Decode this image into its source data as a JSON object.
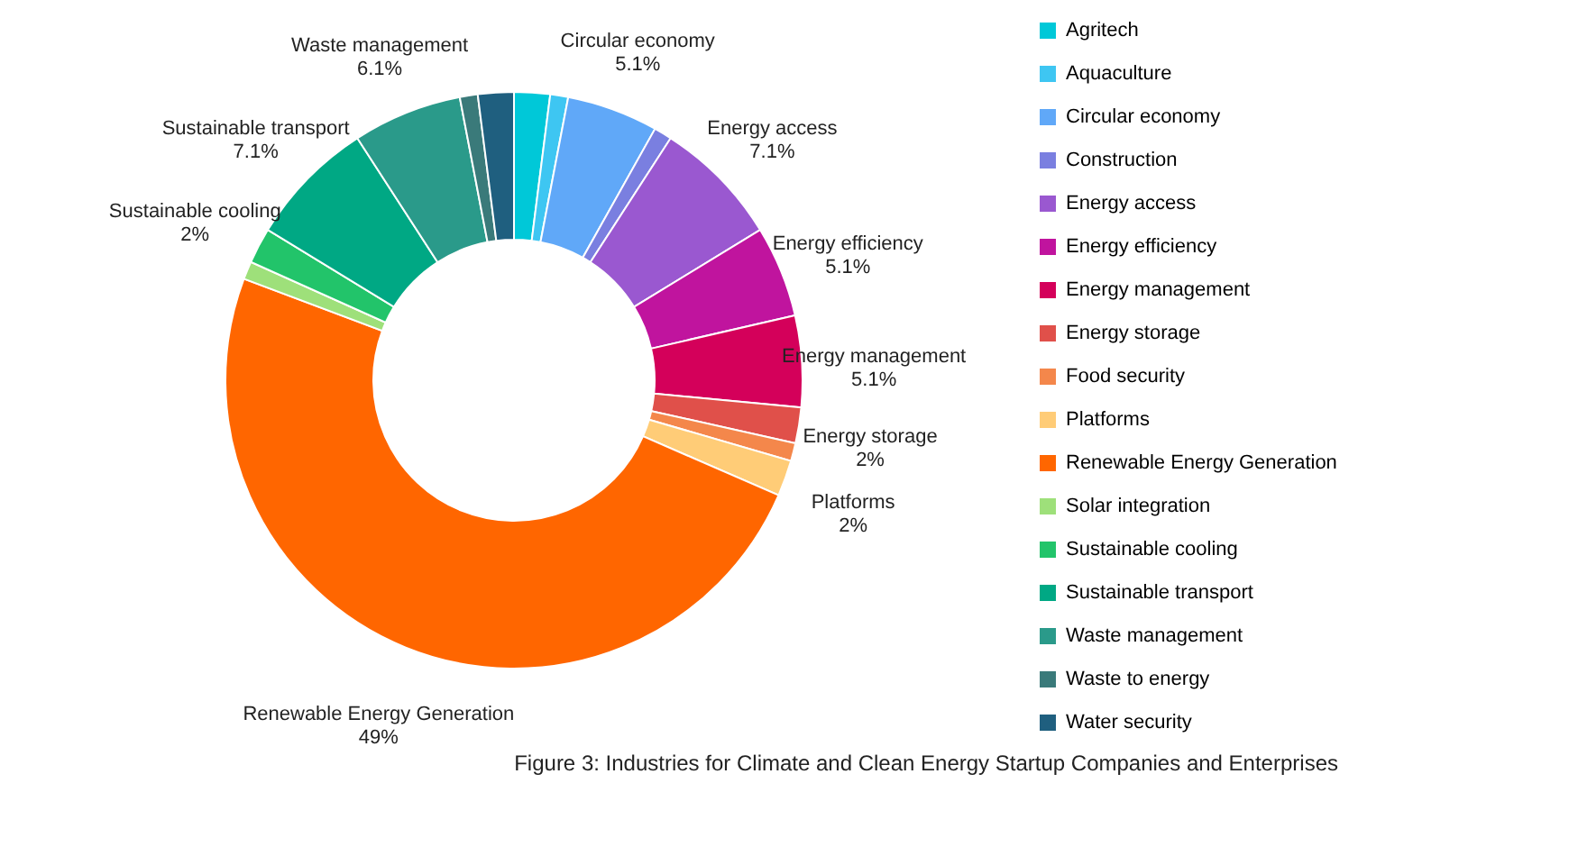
{
  "chart_data": {
    "type": "donut",
    "title": "Figure 3: Industries for Climate and Clean Energy Startup Companies and Enterprises",
    "categories": [
      "Agritech",
      "Aquaculture",
      "Circular economy",
      "Construction",
      "Energy access",
      "Energy efficiency",
      "Energy management",
      "Energy storage",
      "Food security",
      "Platforms",
      "Renewable Energy Generation",
      "Solar integration",
      "Sustainable cooling",
      "Sustainable transport",
      "Waste management",
      "Waste to energy",
      "Water security"
    ],
    "values": [
      2,
      1,
      5.1,
      1,
      7.1,
      5.1,
      5.1,
      2,
      1,
      2,
      49,
      1,
      2,
      7.1,
      6.1,
      1,
      2
    ],
    "value_labels": [
      null,
      null,
      "5.1%",
      null,
      "7.1%",
      "5.1%",
      "5.1%",
      "2%",
      null,
      "2%",
      "49%",
      null,
      "2%",
      "7.1%",
      "6.1%",
      null,
      null
    ],
    "colors": [
      "#00c8d8",
      "#3ec6f2",
      "#60a8f8",
      "#7a7fe0",
      "#9a58d0",
      "#c0149e",
      "#d4005a",
      "#e0504a",
      "#f4874b",
      "#ffcc77",
      "#ff6600",
      "#9ee07a",
      "#22c46a",
      "#00a884",
      "#2a9a8a",
      "#3a7a7a",
      "#1f5f7f"
    ],
    "legend": "right"
  }
}
